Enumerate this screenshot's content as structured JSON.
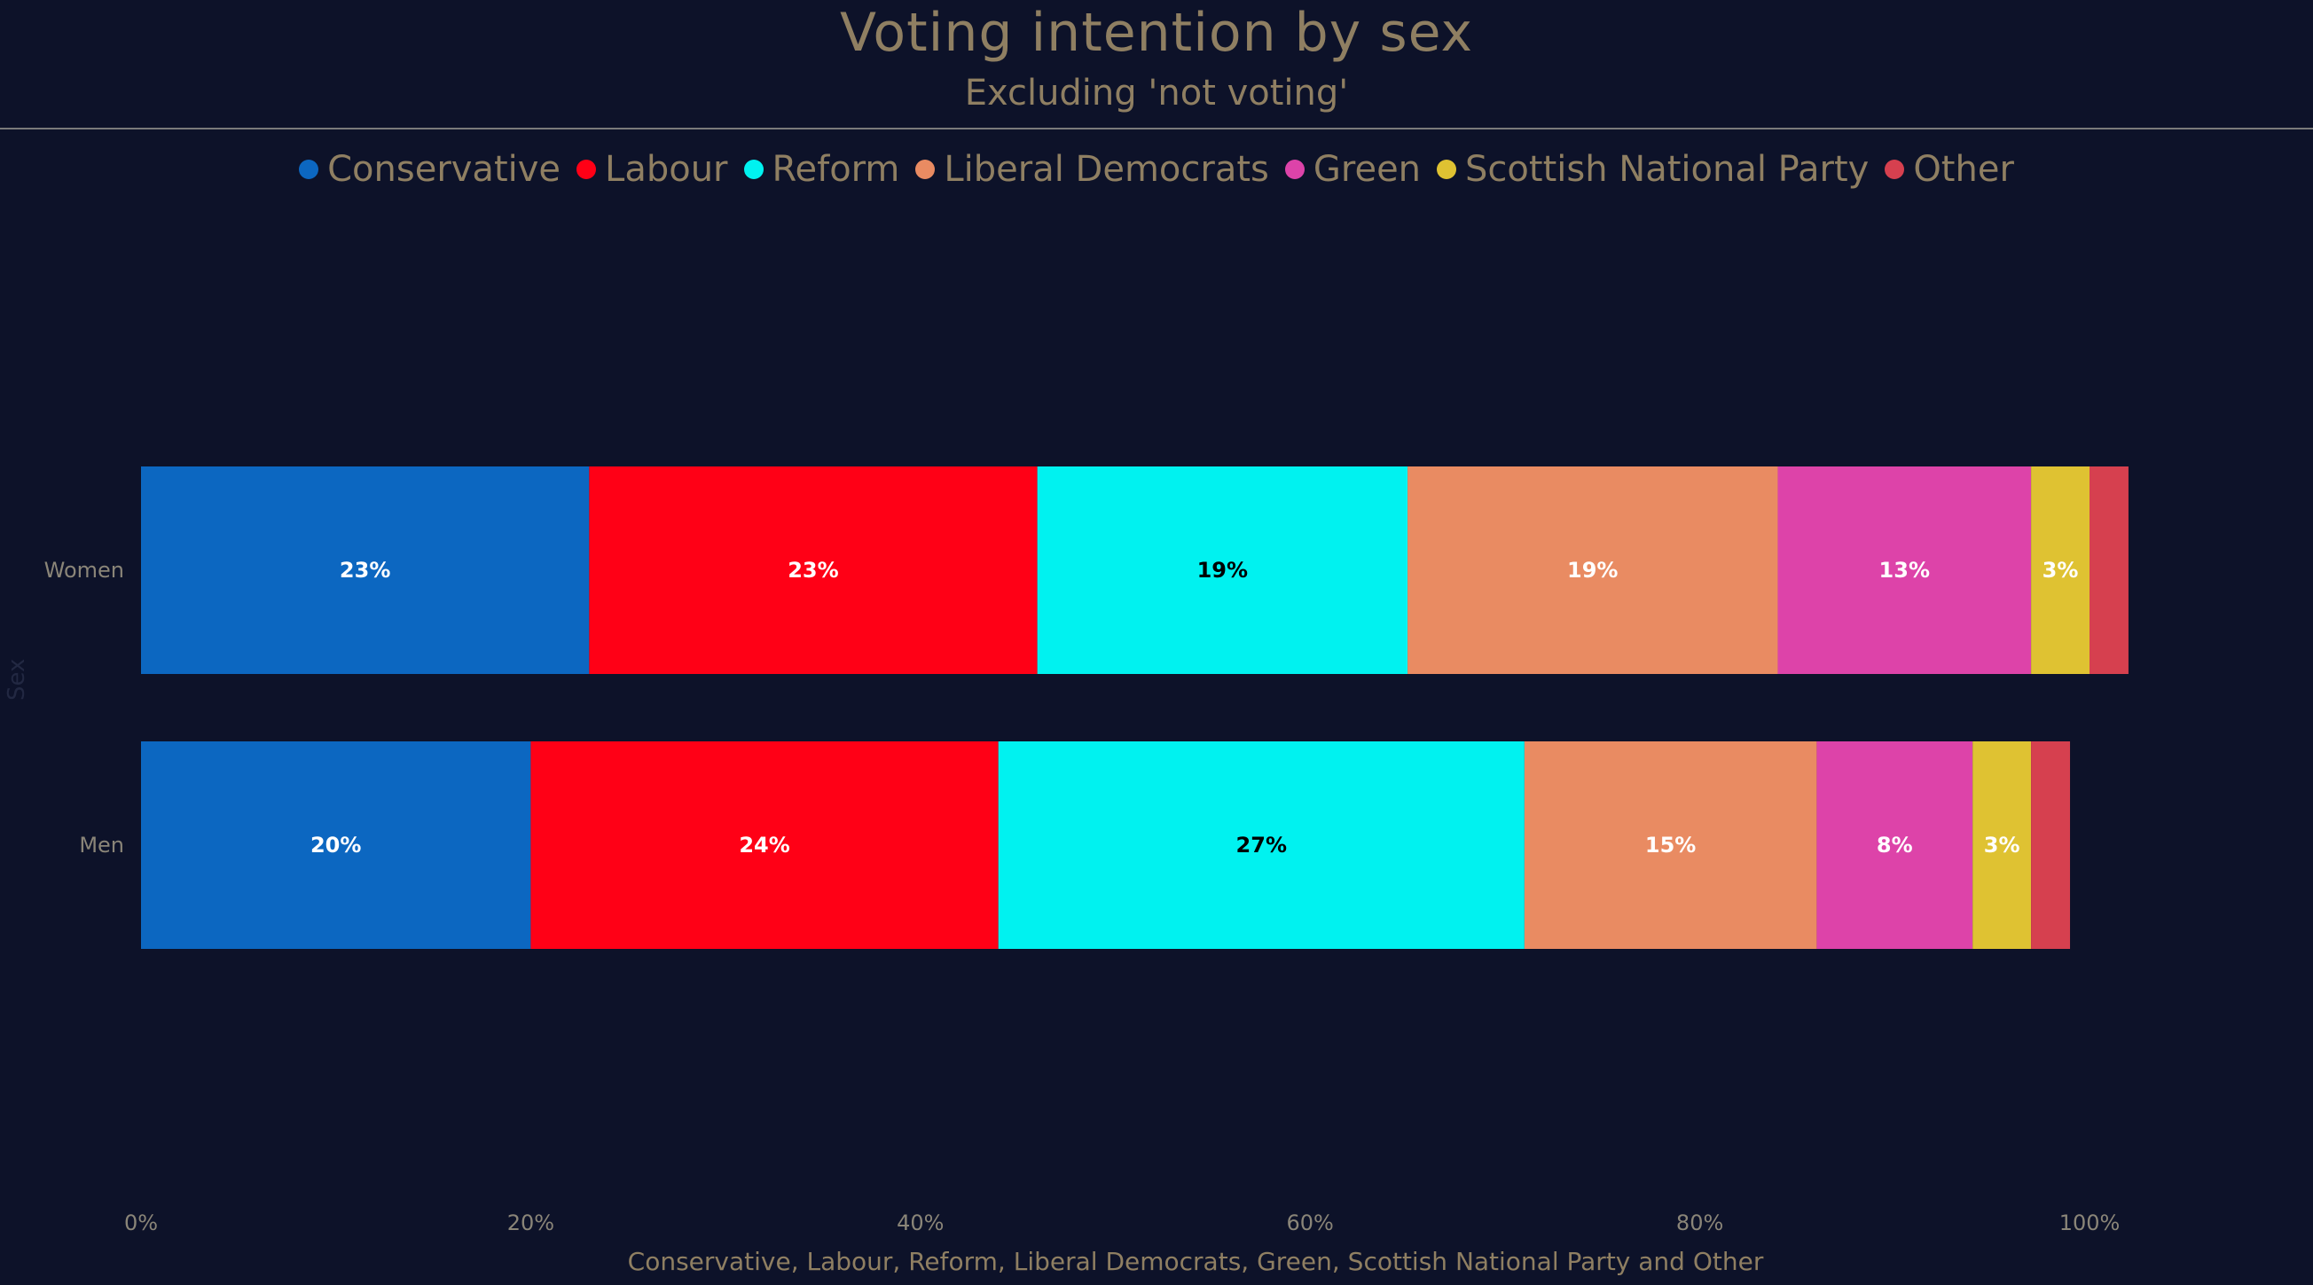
{
  "chart_data": {
    "type": "bar",
    "orientation": "horizontal",
    "stacked": true,
    "title": "Voting intention by sex",
    "subtitle": "Excluding 'not voting'",
    "xlabel": "Conservative, Labour, Reform, Liberal Democrats, Green, Scottish National Party and Other",
    "ylabel": "Sex",
    "xlim": [
      0,
      100
    ],
    "x_ticks": [
      "0%",
      "20%",
      "40%",
      "60%",
      "80%",
      "100%"
    ],
    "x_tick_values": [
      0,
      20,
      40,
      60,
      80,
      100
    ],
    "grid": false,
    "legend_position": "top-center",
    "categories": [
      "Women",
      "Men"
    ],
    "series": [
      {
        "name": "Conservative",
        "color": "#0c67c1",
        "label_color": "#ffffff",
        "values": [
          23,
          20
        ],
        "labels": [
          "23%",
          "20%"
        ]
      },
      {
        "name": "Labour",
        "color": "#ff0016",
        "label_color": "#ffffff",
        "values": [
          23,
          24
        ],
        "labels": [
          "23%",
          "24%"
        ]
      },
      {
        "name": "Reform",
        "color": "#00f2f0",
        "label_color": "#000000",
        "values": [
          19,
          27
        ],
        "labels": [
          "19%",
          "27%"
        ]
      },
      {
        "name": "Liberal Democrats",
        "color": "#e98b62",
        "label_color": "#ffffff",
        "values": [
          19,
          15
        ],
        "labels": [
          "19%",
          "15%"
        ]
      },
      {
        "name": "Green",
        "color": "#dd43a9",
        "label_color": "#ffffff",
        "values": [
          13,
          8
        ],
        "labels": [
          "13%",
          "8%"
        ]
      },
      {
        "name": "Scottish National Party",
        "color": "#dfc232",
        "label_color": "#ffffff",
        "values": [
          3,
          3
        ],
        "labels": [
          "3%",
          "3%"
        ]
      },
      {
        "name": "Other",
        "color": "#d6404f",
        "label_color": "#ffffff",
        "values": [
          2,
          2
        ],
        "labels": [
          "",
          ""
        ]
      }
    ]
  },
  "colors": {
    "background": "#0d1229",
    "title_text": "#8f7f62",
    "axis_text": "#8a8578"
  }
}
